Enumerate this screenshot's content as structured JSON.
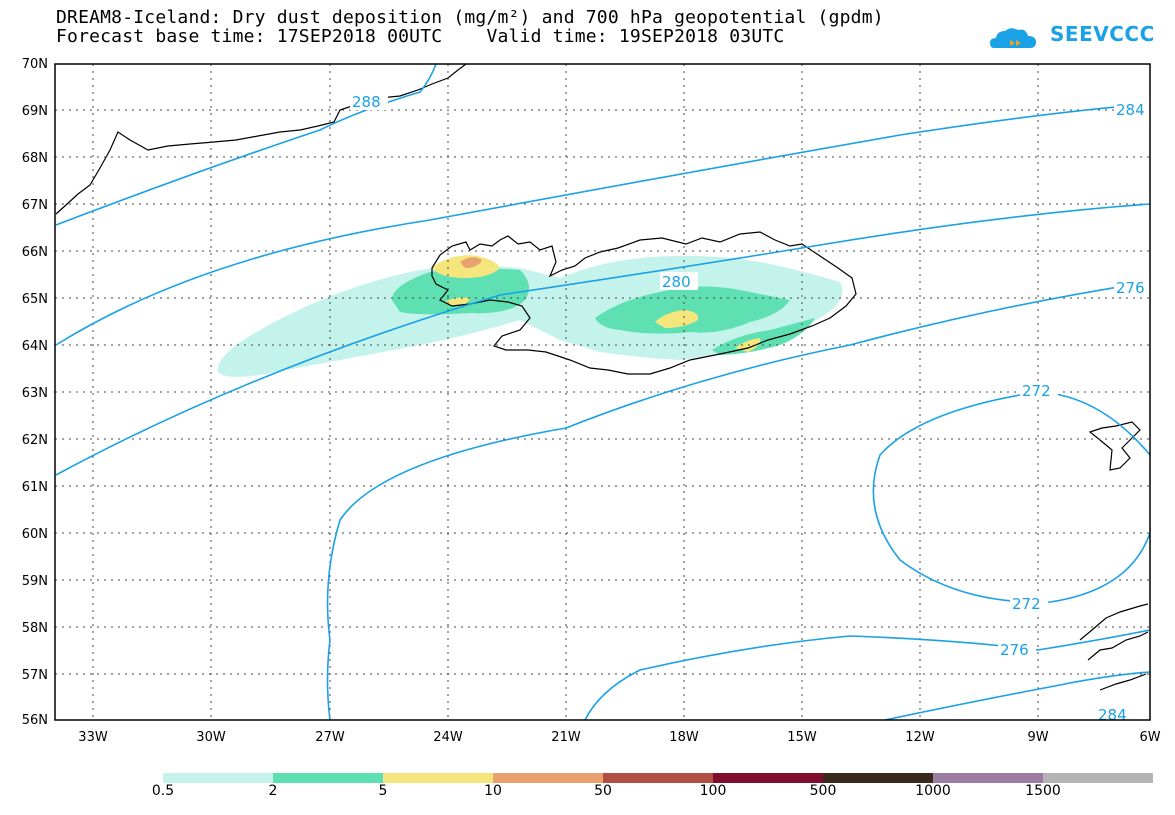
{
  "header": {
    "title_line1": "DREAM8-Iceland: Dry dust deposition (mg/m²) and 700 hPa geopotential (gpdm)",
    "title_line2": "Forecast base time: 17SEP2018 00UTC    Valid time: 19SEP2018 03UTC",
    "logo_text": "SEEVCCC"
  },
  "map": {
    "lat_labels": [
      "70N",
      "69N",
      "68N",
      "67N",
      "66N",
      "65N",
      "64N",
      "63N",
      "62N",
      "61N",
      "60N",
      "59N",
      "58N",
      "57N",
      "56N"
    ],
    "lon_labels": [
      "33W",
      "30W",
      "27W",
      "24W",
      "21W",
      "18W",
      "15W",
      "12W",
      "9W",
      "6W"
    ],
    "contour_color": "#1aa1e6",
    "contour_labels": [
      "288",
      "284",
      "280",
      "276",
      "272",
      "272",
      "276",
      "284"
    ]
  },
  "legend": {
    "colors": [
      "#c4f3ec",
      "#5fe0b3",
      "#f4e67d",
      "#e9a16d",
      "#b24f44",
      "#7f0d2c",
      "#3a2a1c",
      "#9b7ca3",
      "#b3b3b3"
    ],
    "labels": [
      "0.5",
      "2",
      "5",
      "10",
      "50",
      "100",
      "500",
      "1000",
      "1500"
    ]
  }
}
